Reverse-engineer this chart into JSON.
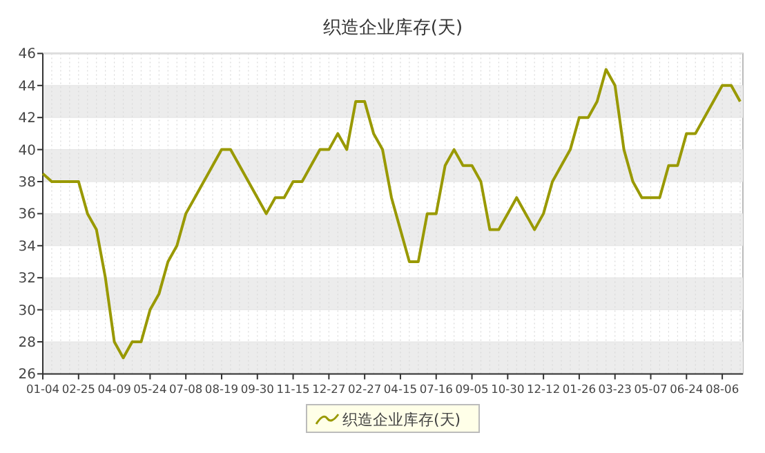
{
  "chart_data": {
    "type": "line",
    "title": "织造企业库存(天)",
    "categories": [
      "01-04",
      null,
      null,
      null,
      "02-25",
      null,
      null,
      null,
      "04-09",
      null,
      null,
      null,
      "05-24",
      null,
      null,
      null,
      "07-08",
      null,
      null,
      null,
      "08-19",
      null,
      null,
      null,
      "09-30",
      null,
      null,
      null,
      "11-15",
      null,
      null,
      null,
      "12-27",
      null,
      null,
      null,
      "02-27",
      null,
      null,
      null,
      "04-15",
      null,
      null,
      null,
      "07-16",
      null,
      null,
      null,
      "09-05",
      null,
      null,
      null,
      "10-30",
      null,
      null,
      null,
      "12-12",
      null,
      null,
      null,
      "01-26",
      null,
      null,
      null,
      "03-23",
      null,
      null,
      null,
      "05-07",
      null,
      null,
      null,
      "06-24",
      null,
      null,
      null,
      "08-06",
      null,
      null
    ],
    "series": [
      {
        "name": "织造企业库存(天)",
        "color": "#999900",
        "values": [
          38.5,
          38,
          38,
          38,
          38,
          36,
          35,
          32,
          28,
          27,
          28,
          28,
          30,
          31,
          33,
          34,
          36,
          37,
          38,
          39,
          40,
          40,
          39,
          38,
          37,
          36,
          37,
          37,
          38,
          38,
          39,
          40,
          40,
          41,
          40,
          43,
          43,
          41,
          40,
          37,
          35,
          33,
          33,
          36,
          36,
          39,
          40,
          39,
          39,
          38,
          35,
          35,
          36,
          37,
          36,
          35,
          36,
          38,
          39,
          40,
          42,
          42,
          43,
          45,
          44,
          40,
          38,
          37,
          37,
          37,
          39,
          39,
          41,
          41,
          42,
          43,
          44,
          44,
          43
        ]
      }
    ],
    "ylim": [
      26,
      46
    ],
    "yticks": [
      26,
      28,
      30,
      32,
      34,
      36,
      38,
      40,
      42,
      44,
      46
    ],
    "grid": true,
    "legend": "bottom",
    "marker": "none",
    "line_style": "solid"
  }
}
